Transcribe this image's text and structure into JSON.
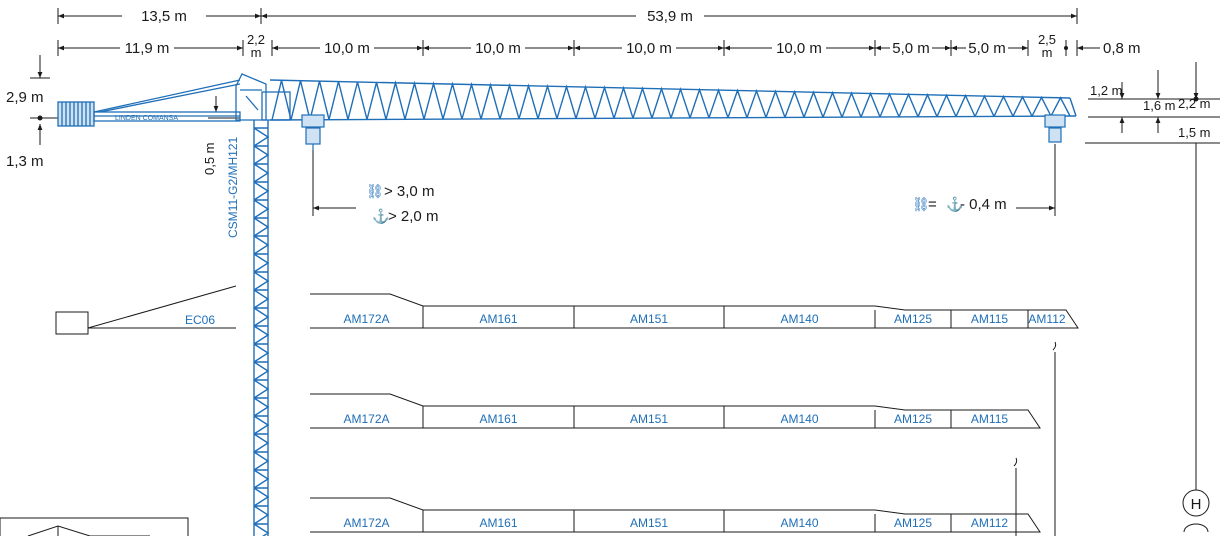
{
  "top_dims": {
    "counter_total": "13,5 m",
    "jib_total": "53,9 m"
  },
  "second_dims": {
    "counter_jib": "11,9 m",
    "mast_head_a": "2,2",
    "mast_head_b": "m",
    "seg1": "10,0 m",
    "seg2": "10,0 m",
    "seg3": "10,0 m",
    "seg4": "10,0 m",
    "seg5": "5,0 m",
    "seg6": "5,0 m",
    "tip_a": "2,5",
    "tip_b": "m",
    "tip_offset": "0,8 m"
  },
  "left_dims": {
    "height_above": "2,9 m",
    "height_below": "1,3 m",
    "offset_small": "0,5 m"
  },
  "right_dims": {
    "h1": "1,2 m",
    "h2": "1,6 m",
    "h3": "2,2 m",
    "h4": "1,5 m"
  },
  "mast_label": "CSM11-G2/MH121",
  "trolley_notes": {
    "min_radius_double": "> 3,0 m",
    "min_radius_single": "> 2,0 m",
    "tip_rule": "= ",
    "tip_rule_value": " - 0,4 m"
  },
  "counter_jib_label": "EC06",
  "crane_brand": "LINDEN COMANSA",
  "jib_configs": [
    {
      "sections": [
        "AM172A",
        "AM161",
        "AM151",
        "AM140",
        "AM125",
        "AM115",
        "AM112"
      ]
    },
    {
      "sections": [
        "AM172A",
        "AM161",
        "AM151",
        "AM140",
        "AM125",
        "AM115"
      ]
    },
    {
      "sections": [
        "AM172A",
        "AM161",
        "AM151",
        "AM140",
        "AM125",
        "AM112"
      ]
    }
  ],
  "height_marker": "H",
  "colors": {
    "crane_blue": "#1f6fb8",
    "line": "#1a1a1a"
  }
}
